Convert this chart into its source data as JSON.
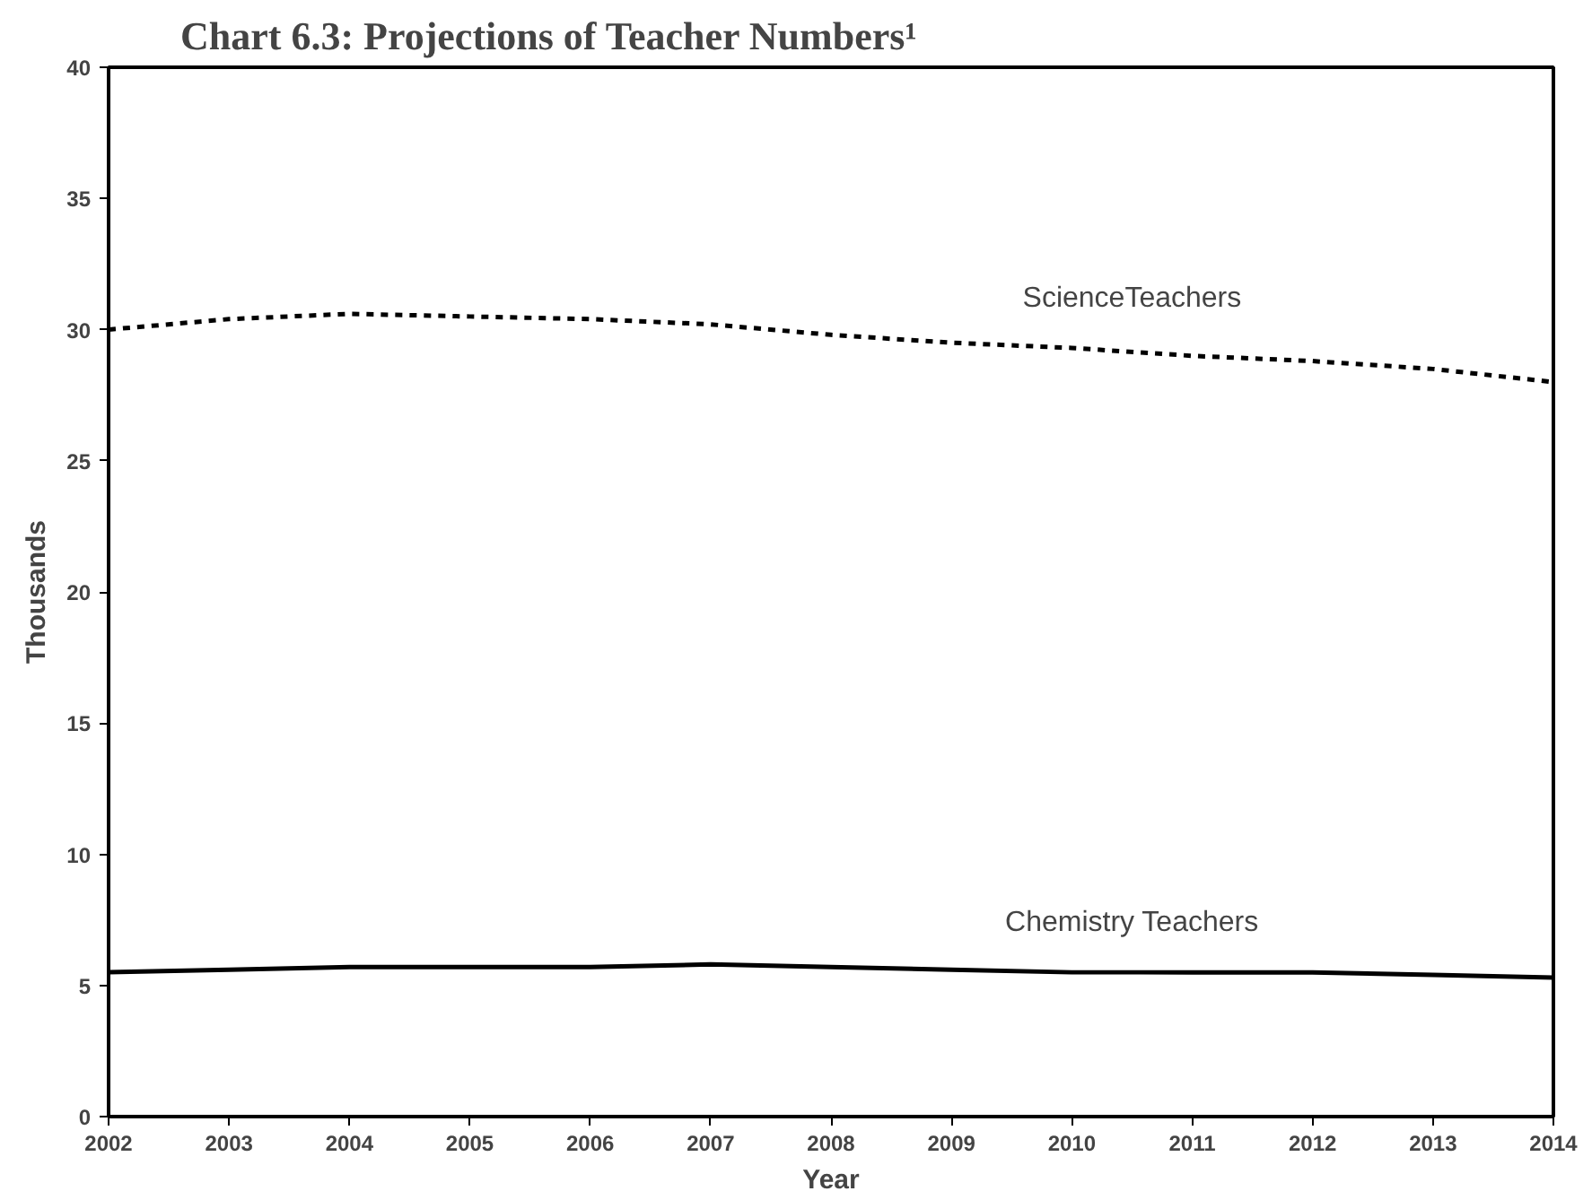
{
  "chart_data": {
    "type": "line",
    "title": "Chart 6.3: Projections of Teacher Numbers¹",
    "xlabel": "Year",
    "ylabel": "Thousands",
    "x": [
      2002,
      2003,
      2004,
      2005,
      2006,
      2007,
      2008,
      2009,
      2010,
      2011,
      2012,
      2013,
      2014
    ],
    "xlim": [
      2002,
      2014
    ],
    "xticks": [
      2002,
      2003,
      2004,
      2005,
      2006,
      2007,
      2008,
      2009,
      2010,
      2011,
      2012,
      2013,
      2014
    ],
    "ylim": [
      0,
      40
    ],
    "yticks": [
      0,
      5,
      10,
      15,
      20,
      25,
      30,
      35,
      40
    ],
    "grid": false,
    "legend": false,
    "marker": "none",
    "series": [
      {
        "name": "ScienceTeachers",
        "color": "#000000",
        "line_style": "dashed",
        "values": [
          30.0,
          30.4,
          30.6,
          30.5,
          30.4,
          30.2,
          29.8,
          29.5,
          29.3,
          29.0,
          28.8,
          28.5,
          28.0
        ]
      },
      {
        "name": "Chemistry Teachers",
        "color": "#000000",
        "line_style": "solid",
        "values": [
          5.5,
          5.6,
          5.7,
          5.7,
          5.7,
          5.8,
          5.7,
          5.6,
          5.5,
          5.5,
          5.5,
          5.4,
          5.3
        ]
      }
    ]
  }
}
